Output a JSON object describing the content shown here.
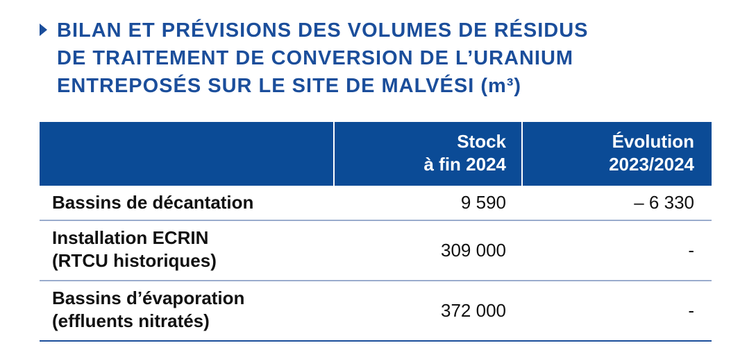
{
  "title": {
    "lines": [
      "BILAN ET PRÉVISIONS DES VOLUMES DE RÉSIDUS",
      "DE TRAITEMENT DE CONVERSION DE L’URANIUM",
      "ENTREPOSÉS SUR LE SITE DE MALVÉSI (m³)"
    ]
  },
  "table": {
    "header": [
      [
        "Stock",
        "à fin 2024"
      ],
      [
        "Évolution",
        "2023/2024"
      ]
    ],
    "rows": [
      {
        "label": [
          "Bassins de décantation"
        ],
        "cells": [
          "9 590",
          "– 6 330"
        ]
      },
      {
        "label": [
          "Installation ECRIN",
          "(RTCU historiques)"
        ],
        "cells": [
          "309 000",
          "-"
        ]
      },
      {
        "label": [
          "Bassins d’évaporation",
          "(effluents nitratés)"
        ],
        "cells": [
          "372 000",
          "-"
        ]
      }
    ]
  }
}
